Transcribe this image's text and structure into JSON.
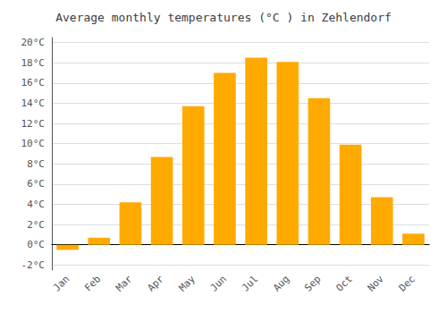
{
  "chart_data": {
    "type": "bar",
    "title": "Average monthly temperatures (°C ) in Zehlendorf",
    "categories": [
      "Jan",
      "Feb",
      "Mar",
      "Apr",
      "May",
      "Jun",
      "Jul",
      "Aug",
      "Sep",
      "Oct",
      "Nov",
      "Dec"
    ],
    "values": [
      -0.5,
      0.7,
      4.2,
      8.7,
      13.7,
      17.0,
      18.5,
      18.1,
      14.5,
      9.9,
      4.7,
      1.1
    ],
    "color": "#FFAA00",
    "ylim": [
      -2.5,
      20.5
    ],
    "yticks": [
      {
        "value": -2,
        "label": "-2°C"
      },
      {
        "value": 0,
        "label": "0°C"
      },
      {
        "value": 2,
        "label": "2°C"
      },
      {
        "value": 4,
        "label": "4°C"
      },
      {
        "value": 6,
        "label": "6°C"
      },
      {
        "value": 8,
        "label": "8°C"
      },
      {
        "value": 10,
        "label": "10°C"
      },
      {
        "value": 12,
        "label": "12°C"
      },
      {
        "value": 14,
        "label": "14°C"
      },
      {
        "value": 16,
        "label": "16°C"
      },
      {
        "value": 18,
        "label": "18°C"
      },
      {
        "value": 20,
        "label": "20°C"
      }
    ],
    "grid": true
  }
}
